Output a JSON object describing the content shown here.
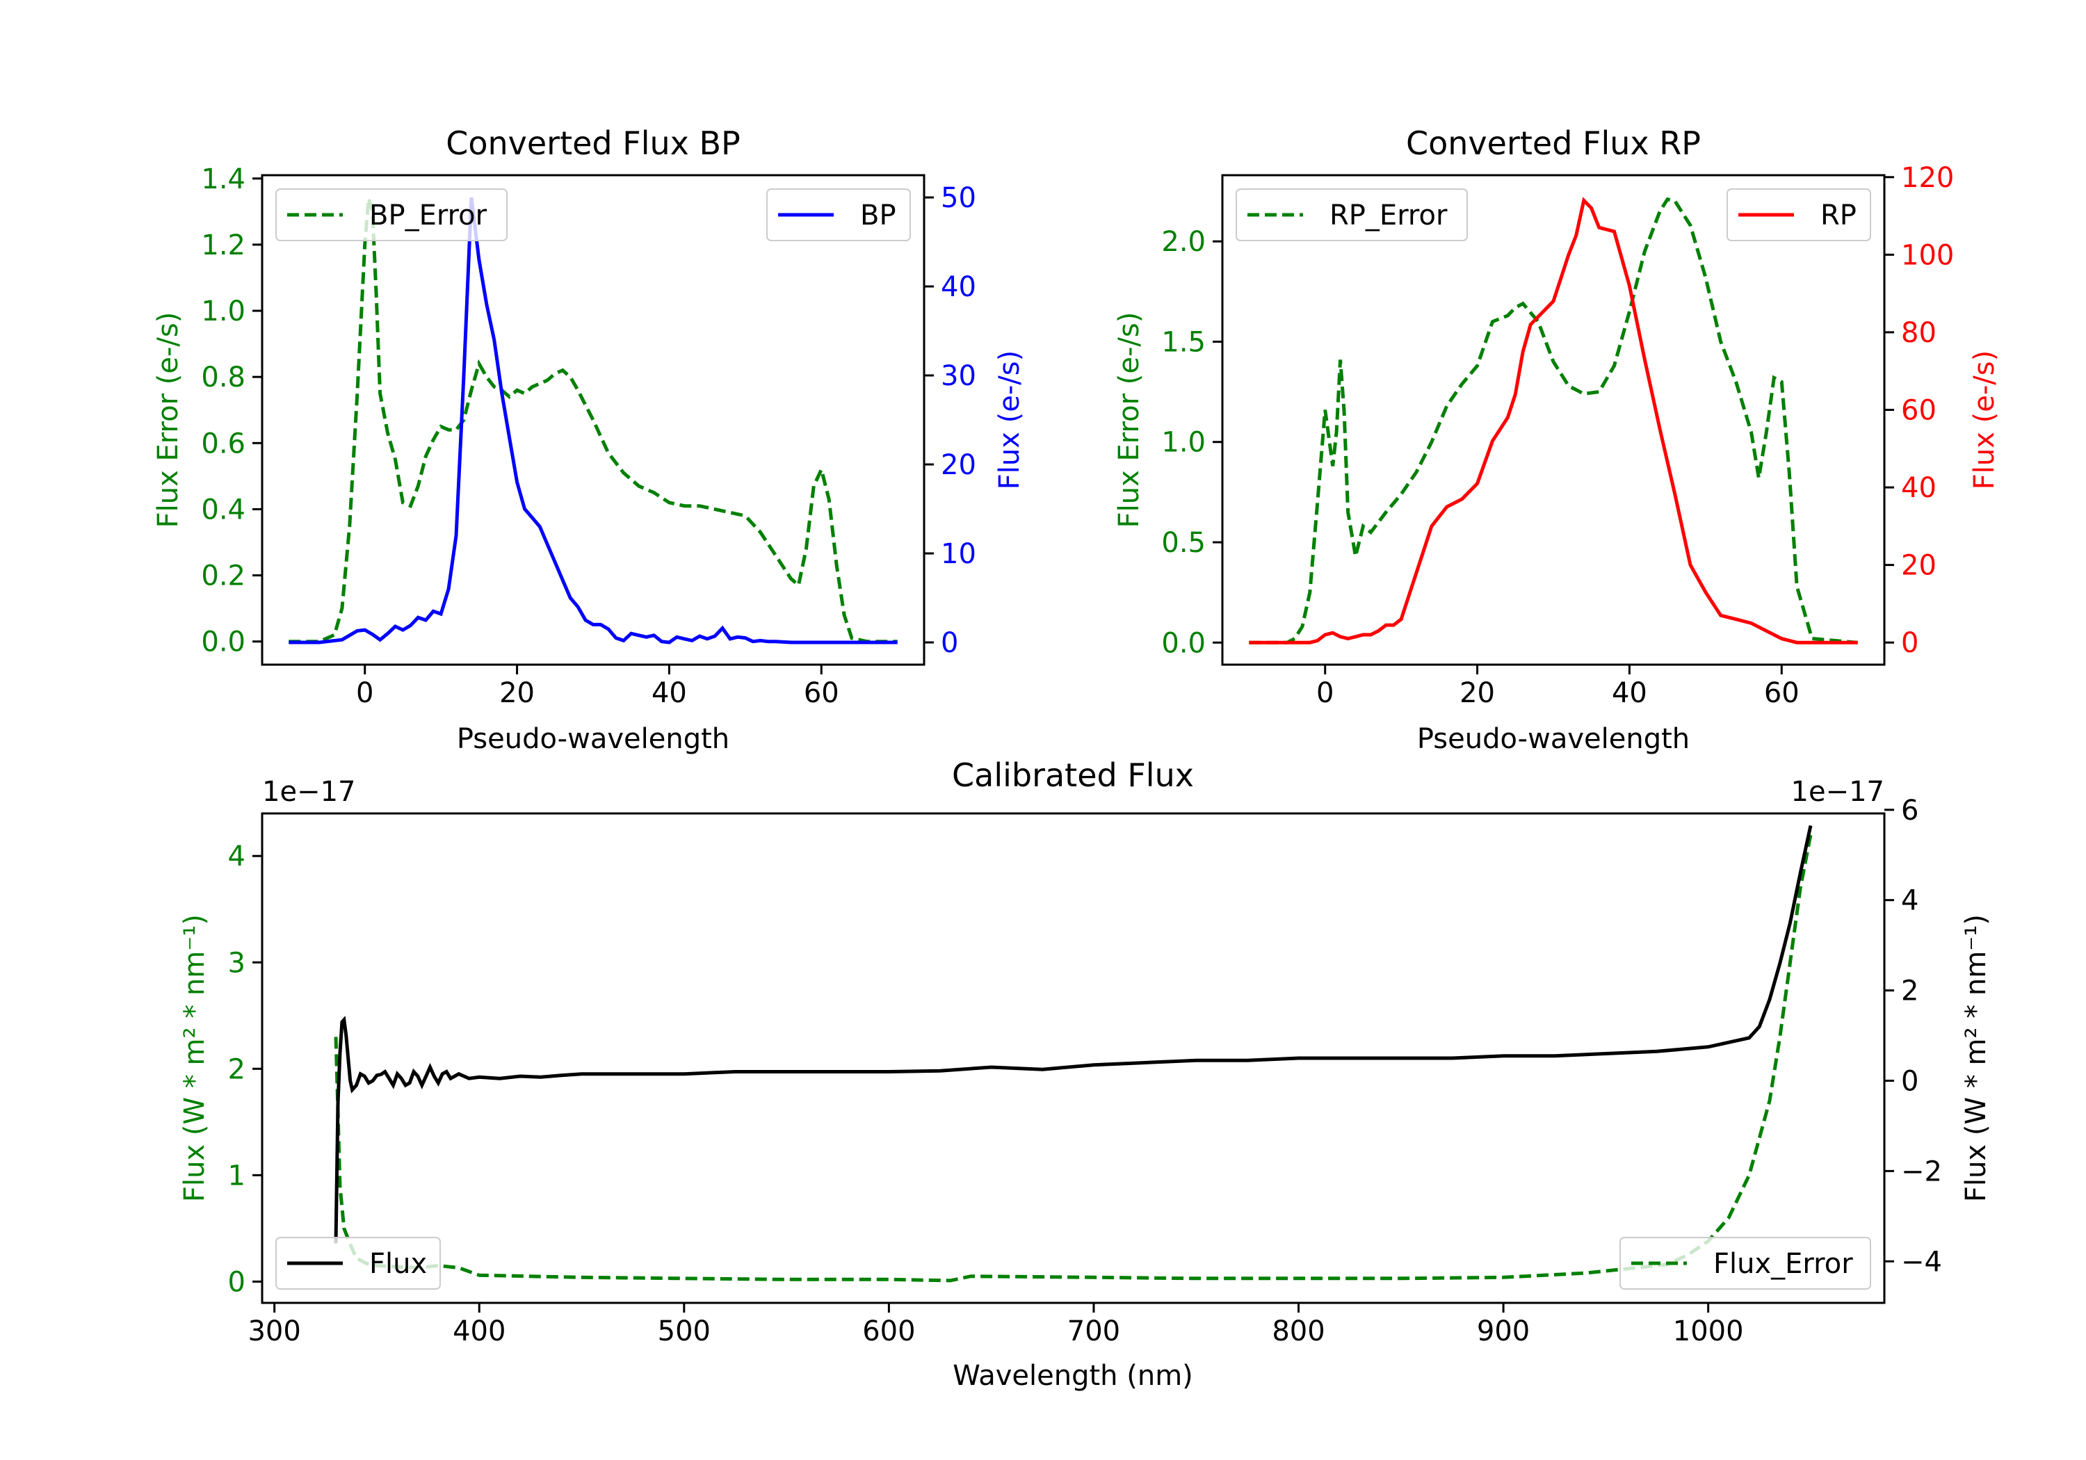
{
  "colors": {
    "bp": "#0000ff",
    "rp": "#ff0000",
    "error": "#008000",
    "flux": "#000000",
    "axis": "#000000"
  },
  "chart_data": [
    {
      "id": "bp",
      "type": "line",
      "title": "Converted Flux BP",
      "xlabel": "Pseudo-wavelength",
      "ylabel_left": "Flux Error (e-/s)",
      "ylabel_right": "Flux (e-/s)",
      "xlim": [
        -13.5,
        73.5
      ],
      "ylim_left": [
        -0.07,
        1.41
      ],
      "ylim_right": [
        -2.5,
        52.5
      ],
      "xticks": [
        0,
        20,
        40,
        60
      ],
      "yticks_left": [
        0.0,
        0.2,
        0.4,
        0.6,
        0.8,
        1.0,
        1.2,
        1.4
      ],
      "yticks_left_labels": [
        "0.0",
        "0.2",
        "0.4",
        "0.6",
        "0.8",
        "1.0",
        "1.2",
        "1.4"
      ],
      "yticks_right": [
        0,
        10,
        20,
        30,
        40,
        50
      ],
      "yticks_right_labels": [
        "0",
        "10",
        "20",
        "30",
        "40",
        "50"
      ],
      "legend_left": {
        "label": "BP_Error",
        "position": "top-left"
      },
      "legend_right": {
        "label": "BP",
        "position": "top-right"
      },
      "series": [
        {
          "name": "BP_Error",
          "axis": "left",
          "style": "dashed",
          "color": "#008000",
          "x": [
            -10,
            -6,
            -4,
            -3,
            -2,
            -1,
            0,
            0.5,
            1,
            1.5,
            2,
            3,
            4,
            5,
            6,
            7,
            8,
            9,
            10,
            11,
            12,
            13,
            14,
            15,
            16,
            17,
            18,
            19,
            20,
            21,
            22,
            23,
            24,
            25,
            26,
            27,
            28,
            30,
            32,
            34,
            36,
            38,
            40,
            42,
            44,
            46,
            48,
            50,
            52,
            54,
            56,
            57,
            58,
            59,
            60,
            61,
            62,
            63,
            64,
            66,
            70
          ],
          "y": [
            0,
            0,
            0.02,
            0.1,
            0.35,
            0.75,
            1.2,
            1.34,
            1.3,
            1.05,
            0.75,
            0.63,
            0.55,
            0.42,
            0.41,
            0.47,
            0.56,
            0.61,
            0.65,
            0.64,
            0.64,
            0.67,
            0.76,
            0.84,
            0.8,
            0.77,
            0.76,
            0.74,
            0.76,
            0.75,
            0.77,
            0.78,
            0.79,
            0.81,
            0.82,
            0.8,
            0.76,
            0.67,
            0.57,
            0.51,
            0.47,
            0.45,
            0.42,
            0.41,
            0.41,
            0.4,
            0.39,
            0.38,
            0.33,
            0.26,
            0.19,
            0.17,
            0.28,
            0.47,
            0.52,
            0.43,
            0.23,
            0.08,
            0.01,
            0,
            0
          ]
        },
        {
          "name": "BP",
          "axis": "right",
          "style": "solid",
          "color": "#0000ff",
          "x": [
            -10,
            -6,
            -3,
            -2,
            -1,
            0,
            1,
            2,
            3,
            4,
            5,
            6,
            7,
            8,
            9,
            10,
            11,
            12,
            13,
            14,
            15,
            16,
            17,
            18,
            19,
            20,
            21,
            22,
            23,
            24,
            25,
            26,
            27,
            28,
            29,
            30,
            31,
            32,
            33,
            34,
            35,
            36,
            37,
            38,
            39,
            40,
            41,
            42,
            43,
            44,
            45,
            46,
            47,
            48,
            49,
            50,
            51,
            52,
            53,
            54,
            56,
            58,
            60,
            62,
            64,
            66,
            70
          ],
          "y": [
            0,
            0,
            0.3,
            0.8,
            1.3,
            1.4,
            0.9,
            0.3,
            1.0,
            1.8,
            1.4,
            1.9,
            2.8,
            2.5,
            3.5,
            3.2,
            6.0,
            12,
            30,
            50,
            43,
            38,
            34,
            28,
            23,
            18,
            15,
            14,
            13,
            11,
            9,
            7,
            5,
            4,
            2.5,
            2,
            2,
            1.5,
            0.5,
            0.2,
            1.0,
            0.8,
            0.6,
            0.8,
            0.1,
            0.0,
            0.6,
            0.4,
            0.2,
            0.7,
            0.4,
            0.7,
            1.6,
            0.4,
            0.6,
            0.5,
            0.1,
            0.2,
            0.1,
            0.1,
            0,
            0,
            0,
            0,
            0,
            0,
            0
          ]
        }
      ]
    },
    {
      "id": "rp",
      "type": "line",
      "title": "Converted Flux RP",
      "xlabel": "Pseudo-wavelength",
      "ylabel_left": "Flux Error (e-/s)",
      "ylabel_right": "Flux (e-/s)",
      "xlim": [
        -13.5,
        73.5
      ],
      "ylim_left": [
        -0.11,
        2.33
      ],
      "ylim_right": [
        -5.7,
        120.5
      ],
      "xticks": [
        0,
        20,
        40,
        60
      ],
      "yticks_left": [
        0.0,
        0.5,
        1.0,
        1.5,
        2.0
      ],
      "yticks_left_labels": [
        "0.0",
        "0.5",
        "1.0",
        "1.5",
        "2.0"
      ],
      "yticks_right": [
        0,
        20,
        40,
        60,
        80,
        100,
        120
      ],
      "yticks_right_labels": [
        "0",
        "20",
        "40",
        "60",
        "80",
        "100",
        "120"
      ],
      "legend_left": {
        "label": "RP_Error",
        "position": "top-left"
      },
      "legend_right": {
        "label": "RP",
        "position": "top-right"
      },
      "series": [
        {
          "name": "RP_Error",
          "axis": "left",
          "style": "dashed",
          "color": "#008000",
          "x": [
            -10,
            -5,
            -4,
            -3,
            -2,
            -1,
            0,
            1,
            1.5,
            2,
            2.5,
            3,
            4,
            5,
            6,
            8,
            10,
            12,
            14,
            16,
            18,
            20,
            22,
            24,
            25,
            26,
            28,
            30,
            32,
            34,
            36,
            38,
            40,
            42,
            44,
            45,
            46,
            48,
            50,
            52,
            54,
            56,
            57,
            58,
            59,
            60,
            61,
            62,
            64,
            70
          ],
          "y": [
            0,
            0,
            0.02,
            0.08,
            0.25,
            0.7,
            1.16,
            0.88,
            1.05,
            1.41,
            1.15,
            0.65,
            0.43,
            0.58,
            0.55,
            0.65,
            0.74,
            0.85,
            1.0,
            1.18,
            1.29,
            1.38,
            1.6,
            1.63,
            1.67,
            1.69,
            1.6,
            1.4,
            1.28,
            1.24,
            1.25,
            1.38,
            1.65,
            1.95,
            2.15,
            2.21,
            2.2,
            2.08,
            1.82,
            1.5,
            1.3,
            1.05,
            0.82,
            1.05,
            1.32,
            1.3,
            0.85,
            0.28,
            0.02,
            0
          ]
        },
        {
          "name": "RP",
          "axis": "right",
          "style": "solid",
          "color": "#ff0000",
          "x": [
            -10,
            -2,
            -1,
            0,
            1,
            2,
            3,
            4,
            5,
            6,
            7,
            8,
            9,
            10,
            12,
            14,
            16,
            18,
            20,
            22,
            24,
            25,
            26,
            27,
            28,
            30,
            32,
            33,
            34,
            35,
            36,
            38,
            40,
            42,
            44,
            46,
            48,
            50,
            52,
            54,
            56,
            58,
            60,
            62,
            64,
            70
          ],
          "y": [
            0,
            0,
            0.5,
            2,
            2.5,
            1.5,
            1,
            1.5,
            2,
            2,
            3,
            4.5,
            4.5,
            6,
            18,
            30,
            35,
            37,
            41,
            52,
            58,
            64,
            75,
            82,
            84,
            88,
            100,
            105,
            114,
            112,
            107,
            106,
            92,
            73,
            55,
            38,
            20,
            13,
            7,
            6,
            5,
            3,
            1,
            0,
            0,
            0
          ]
        }
      ]
    },
    {
      "id": "calibrated",
      "type": "line",
      "title": "Calibrated Flux",
      "xlabel": "Wavelength (nm)",
      "ylabel_left": "Flux (W * m² * nm⁻¹)",
      "ylabel_right": "Flux (W * m² * nm⁻¹)",
      "offset_left": "1e−17",
      "offset_right": "1e−17",
      "xlim": [
        294,
        1086
      ],
      "ylim_left": [
        -0.2,
        4.4
      ],
      "ylim_right": [
        -4.92,
        5.92
      ],
      "xticks": [
        300,
        400,
        500,
        600,
        700,
        800,
        900,
        1000
      ],
      "yticks_left": [
        0,
        1,
        2,
        3,
        4
      ],
      "yticks_left_labels": [
        "0",
        "1",
        "2",
        "3",
        "4"
      ],
      "yticks_right": [
        -4,
        -2,
        0,
        2,
        4,
        6
      ],
      "yticks_right_labels": [
        "−4",
        "−2",
        "0",
        "2",
        "4",
        "6"
      ],
      "legend_left": {
        "label": "Flux",
        "position": "bottom-left"
      },
      "legend_right": {
        "label": "Flux_Error",
        "position": "bottom-right"
      },
      "series": [
        {
          "name": "Flux_Error",
          "axis": "left",
          "style": "dashed",
          "color": "#008000",
          "x": [
            330,
            331,
            332,
            334,
            337,
            340,
            345,
            350,
            360,
            370,
            380,
            390,
            400,
            450,
            500,
            550,
            600,
            630,
            640,
            700,
            750,
            800,
            850,
            900,
            940,
            960,
            980,
            990,
            1000,
            1010,
            1020,
            1025,
            1030,
            1035,
            1040,
            1045,
            1050
          ],
          "y": [
            2.3,
            1.6,
            0.9,
            0.5,
            0.35,
            0.22,
            0.17,
            0.15,
            0.14,
            0.13,
            0.15,
            0.13,
            0.06,
            0.04,
            0.03,
            0.02,
            0.02,
            0.01,
            0.05,
            0.04,
            0.03,
            0.03,
            0.03,
            0.04,
            0.08,
            0.12,
            0.16,
            0.25,
            0.38,
            0.6,
            1.0,
            1.35,
            1.7,
            2.3,
            3.0,
            3.7,
            4.2
          ]
        },
        {
          "name": "Flux",
          "axis": "right",
          "style": "solid",
          "color": "#000000",
          "x": [
            330,
            331,
            332,
            333,
            334,
            335,
            336,
            337,
            338,
            340,
            342,
            344,
            346,
            348,
            350,
            352,
            354,
            356,
            358,
            360,
            362,
            364,
            366,
            368,
            370,
            372,
            374,
            376,
            378,
            380,
            382,
            384,
            386,
            388,
            390,
            395,
            400,
            410,
            420,
            430,
            440,
            450,
            475,
            500,
            525,
            550,
            575,
            600,
            625,
            650,
            675,
            700,
            725,
            750,
            775,
            800,
            825,
            850,
            875,
            900,
            925,
            950,
            975,
            1000,
            1010,
            1020,
            1025,
            1030,
            1035,
            1040,
            1045,
            1050
          ],
          "y": [
            -3.6,
            -0.5,
            0.6,
            1.3,
            1.35,
            1.0,
            0.5,
            0.0,
            -0.2,
            -0.1,
            0.15,
            0.1,
            -0.05,
            0.0,
            0.12,
            0.14,
            0.2,
            0.05,
            -0.1,
            0.15,
            0.05,
            -0.1,
            -0.05,
            0.2,
            0.1,
            -0.1,
            0.1,
            0.3,
            0.1,
            -0.05,
            0.15,
            0.2,
            0.05,
            0.1,
            0.15,
            0.05,
            0.08,
            0.05,
            0.1,
            0.08,
            0.12,
            0.15,
            0.15,
            0.15,
            0.2,
            0.2,
            0.2,
            0.2,
            0.22,
            0.3,
            0.25,
            0.35,
            0.4,
            0.45,
            0.45,
            0.5,
            0.5,
            0.5,
            0.5,
            0.55,
            0.55,
            0.6,
            0.65,
            0.75,
            0.85,
            0.95,
            1.2,
            1.8,
            2.6,
            3.5,
            4.6,
            5.65
          ]
        }
      ]
    }
  ]
}
